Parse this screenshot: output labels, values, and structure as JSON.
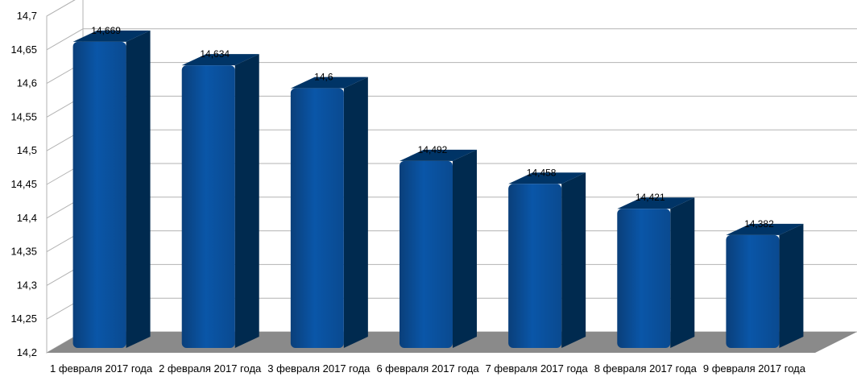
{
  "chart_data": {
    "type": "bar",
    "categories": [
      "1 февраля 2017 года",
      "2 февраля 2017 года",
      "3 февраля 2017 года",
      "6 февраля 2017 года",
      "7 февраля 2017 года",
      "8 февраля 2017 года",
      "9 февраля 2017 года"
    ],
    "values": [
      14.669,
      14.634,
      14.6,
      14.492,
      14.458,
      14.421,
      14.382
    ],
    "data_labels": [
      "14,669",
      "14,634",
      "14,6",
      "14,492",
      "14,458",
      "14,421",
      "14,382"
    ],
    "y_ticks": [
      14.2,
      14.25,
      14.3,
      14.35,
      14.4,
      14.45,
      14.5,
      14.55,
      14.6,
      14.65,
      14.7
    ],
    "y_tick_labels": [
      "14,2",
      "14,25",
      "14,3",
      "14,35",
      "14,4",
      "14,45",
      "14,5",
      "14,55",
      "14,6",
      "14,65",
      "14,7"
    ],
    "ylim": [
      14.2,
      14.7
    ],
    "grid": true,
    "style": "3d-bar",
    "legend": "none",
    "colors": {
      "bar_front": "#004586",
      "bar_side": "#002a4f",
      "bar_top": "#003466",
      "floor": "#8a8a8a",
      "grid": "#b3b3b3"
    }
  }
}
